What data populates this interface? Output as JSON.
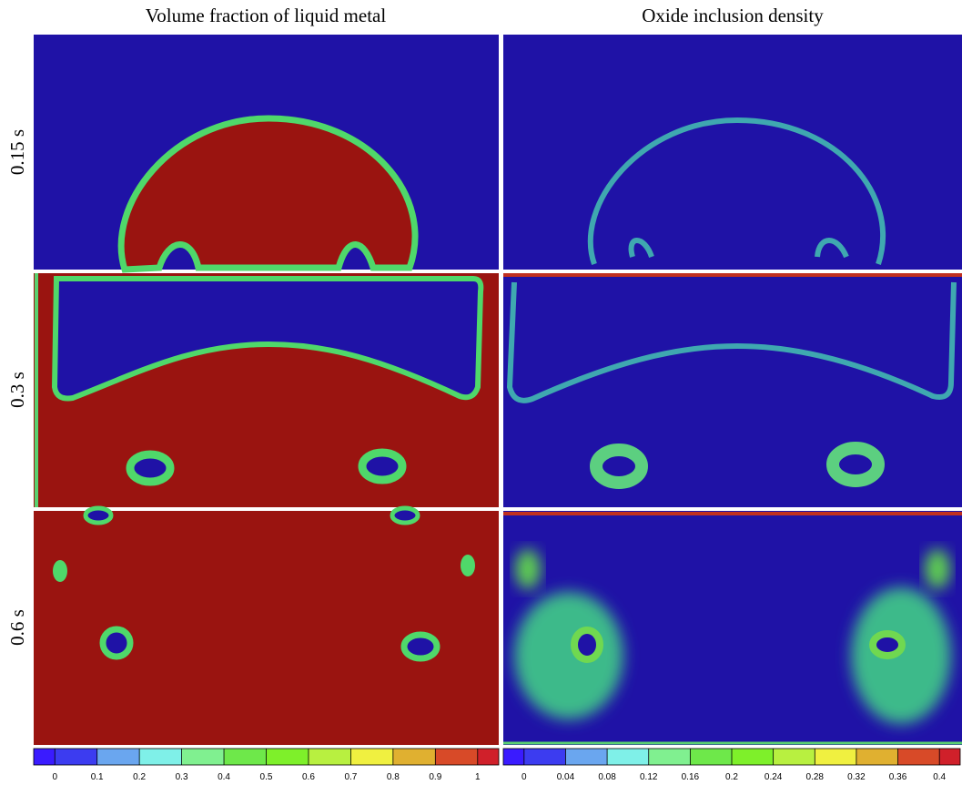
{
  "columns": [
    "Volume fraction of liquid metal",
    "Oxide inclusion density"
  ],
  "rows": [
    "0.15 s",
    "0.3 s",
    "0.6 s"
  ],
  "colorbars": [
    {
      "ticks": [
        0,
        0.1,
        0.2,
        0.3,
        0.4,
        0.5,
        0.6,
        0.7,
        0.8,
        0.9,
        1
      ]
    },
    {
      "ticks": [
        0,
        0.04,
        0.08,
        0.12,
        0.16,
        0.2,
        0.24,
        0.28,
        0.32,
        0.36,
        0.4
      ]
    }
  ],
  "colorbar_colors": [
    "#3a1bff",
    "#3c3cf0",
    "#6aa6ef",
    "#7ff0e8",
    "#80f090",
    "#6ee84a",
    "#7ef02a",
    "#b8f040",
    "#f0f040",
    "#e0b030",
    "#d84a28",
    "#d0202a"
  ]
}
